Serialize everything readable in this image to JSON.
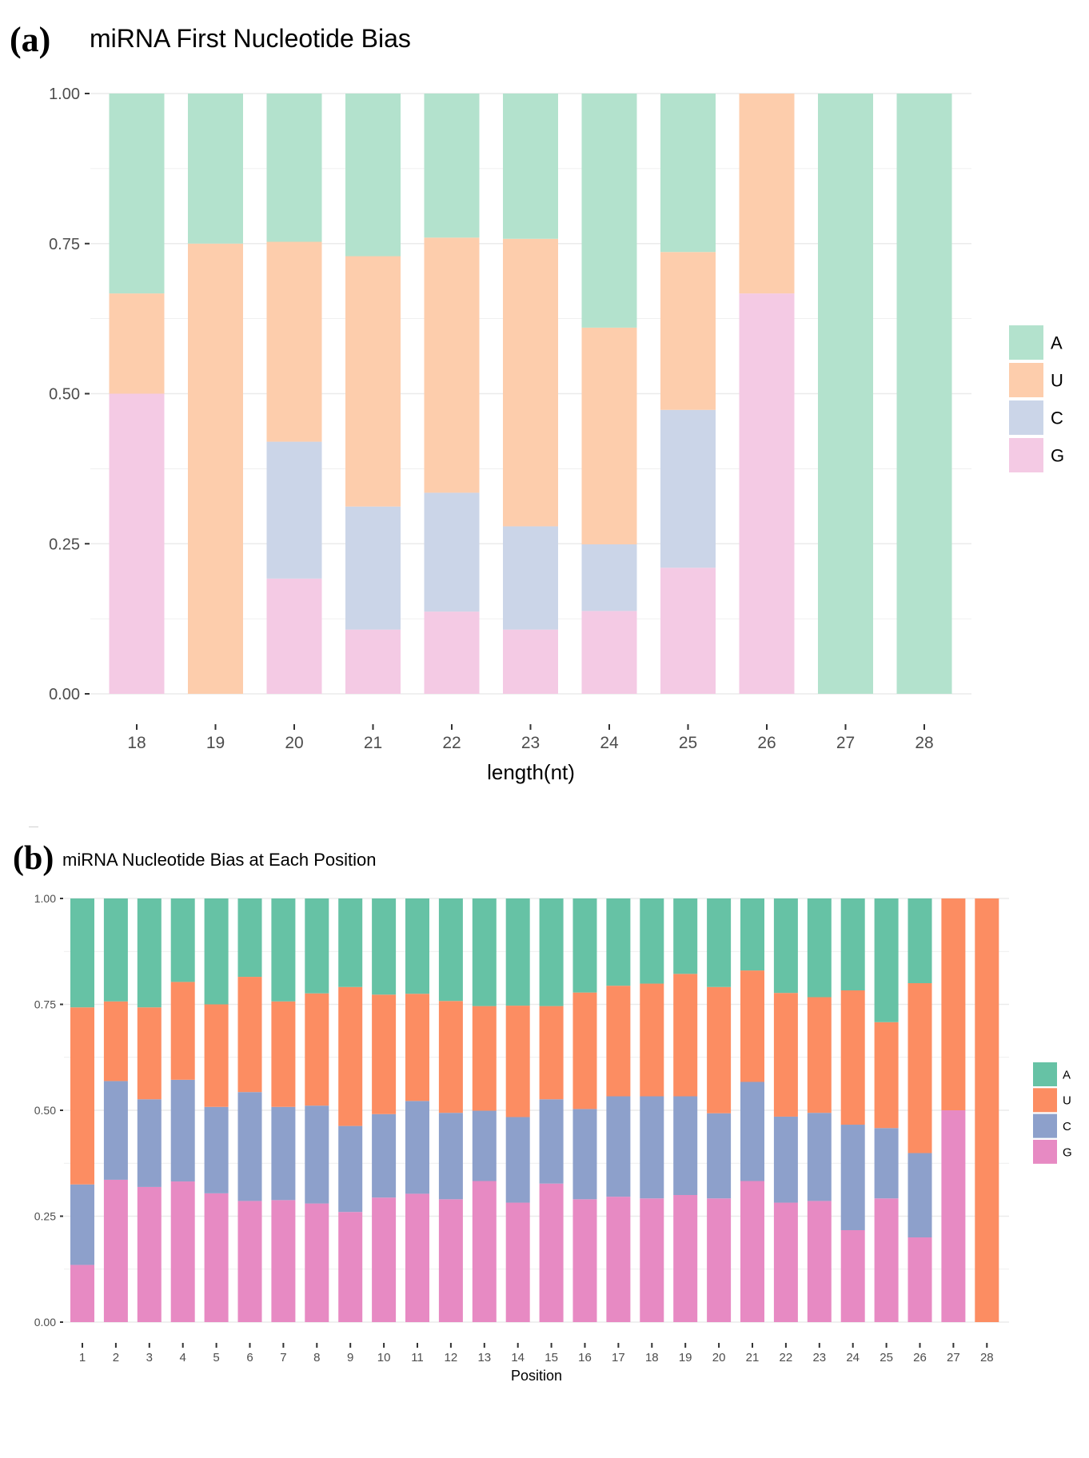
{
  "panels": {
    "a": {
      "letter": "(a)",
      "title": "miRNA First Nucleotide Bias"
    },
    "b": {
      "letter": "(b)",
      "title": "miRNA Nucleotide Bias at Each Position"
    }
  },
  "chart_data": [
    {
      "id": "a",
      "type": "bar",
      "stacked": true,
      "title": "miRNA First Nucleotide Bias",
      "xlabel": "length(nt)",
      "ylabel": "",
      "ylim": [
        0,
        1
      ],
      "yticks": [
        "0.00",
        "0.25",
        "0.50",
        "0.75",
        "1.00"
      ],
      "grid": true,
      "legend": {
        "placement": "right",
        "entries": [
          "A",
          "U",
          "C",
          "G"
        ]
      },
      "colors": {
        "A": "#b3e2cd",
        "U": "#fdcdac",
        "C": "#cbd5e8",
        "G": "#f4cae4"
      },
      "stack_order_bottom_to_top": [
        "G",
        "C",
        "U",
        "A"
      ],
      "categories": [
        "18",
        "19",
        "20",
        "21",
        "22",
        "23",
        "24",
        "25",
        "26",
        "27",
        "28"
      ],
      "series": [
        {
          "name": "A",
          "values": [
            0.333,
            0.25,
            0.247,
            0.271,
            0.24,
            0.242,
            0.39,
            0.264,
            0.0,
            1.0,
            1.0
          ]
        },
        {
          "name": "U",
          "values": [
            0.167,
            0.75,
            0.333,
            0.417,
            0.425,
            0.479,
            0.361,
            0.263,
            0.333,
            0.0,
            0.0
          ]
        },
        {
          "name": "C",
          "values": [
            0.0,
            0.0,
            0.228,
            0.205,
            0.198,
            0.172,
            0.111,
            0.263,
            0.0,
            0.0,
            0.0
          ]
        },
        {
          "name": "G",
          "values": [
            0.5,
            0.0,
            0.192,
            0.107,
            0.137,
            0.107,
            0.138,
            0.21,
            0.667,
            0.0,
            0.0
          ]
        }
      ]
    },
    {
      "id": "b",
      "type": "bar",
      "stacked": true,
      "title": "miRNA Nucleotide Bias at Each Position",
      "xlabel": "Position",
      "ylabel": "",
      "ylim": [
        0,
        1
      ],
      "yticks": [
        "0.00",
        "0.25",
        "0.50",
        "0.75",
        "1.00"
      ],
      "grid": true,
      "legend": {
        "placement": "right",
        "entries": [
          "A",
          "U",
          "C",
          "G"
        ]
      },
      "colors": {
        "A": "#66c2a5",
        "U": "#fc8d62",
        "C": "#8da0cb",
        "G": "#e78ac3"
      },
      "stack_order_bottom_to_top": [
        "G",
        "C",
        "U",
        "A"
      ],
      "categories": [
        "1",
        "2",
        "3",
        "4",
        "5",
        "6",
        "7",
        "8",
        "9",
        "10",
        "11",
        "12",
        "13",
        "14",
        "15",
        "16",
        "17",
        "18",
        "19",
        "20",
        "21",
        "22",
        "23",
        "24",
        "25",
        "26",
        "27",
        "28"
      ],
      "series": [
        {
          "name": "A",
          "values": [
            0.257,
            0.243,
            0.257,
            0.197,
            0.25,
            0.185,
            0.243,
            0.224,
            0.209,
            0.227,
            0.225,
            0.242,
            0.254,
            0.253,
            0.254,
            0.222,
            0.206,
            0.201,
            0.178,
            0.209,
            0.17,
            0.223,
            0.233,
            0.217,
            0.292,
            0.2,
            0.0,
            0.0
          ]
        },
        {
          "name": "U",
          "values": [
            0.418,
            0.188,
            0.217,
            0.231,
            0.242,
            0.272,
            0.249,
            0.265,
            0.328,
            0.282,
            0.253,
            0.264,
            0.247,
            0.263,
            0.22,
            0.275,
            0.261,
            0.266,
            0.289,
            0.298,
            0.263,
            0.292,
            0.273,
            0.317,
            0.25,
            0.401,
            0.5,
            1.0
          ]
        },
        {
          "name": "C",
          "values": [
            0.19,
            0.233,
            0.207,
            0.24,
            0.204,
            0.257,
            0.22,
            0.231,
            0.203,
            0.197,
            0.219,
            0.204,
            0.166,
            0.202,
            0.199,
            0.213,
            0.237,
            0.241,
            0.233,
            0.201,
            0.234,
            0.203,
            0.208,
            0.249,
            0.166,
            0.199,
            0.0,
            0.0
          ]
        },
        {
          "name": "G",
          "values": [
            0.135,
            0.336,
            0.319,
            0.332,
            0.304,
            0.286,
            0.288,
            0.28,
            0.26,
            0.294,
            0.303,
            0.29,
            0.333,
            0.282,
            0.327,
            0.29,
            0.296,
            0.292,
            0.3,
            0.292,
            0.333,
            0.282,
            0.286,
            0.217,
            0.292,
            0.2,
            0.5,
            0.0
          ]
        }
      ]
    }
  ]
}
